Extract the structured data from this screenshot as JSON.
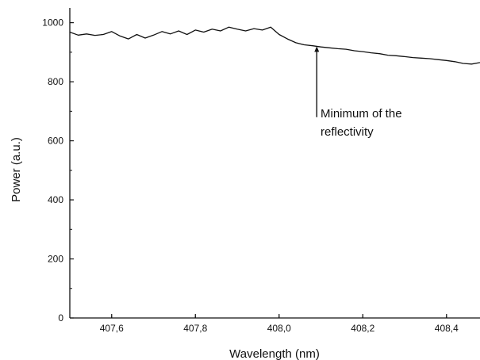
{
  "chart_data": {
    "type": "line",
    "title": "",
    "xlabel": "Wavelength (nm)",
    "ylabel": "Power (a.u.)",
    "xlim": [
      407.5,
      408.48
    ],
    "ylim": [
      0,
      1050
    ],
    "xticks": [
      407.6,
      407.8,
      408.0,
      408.2,
      408.4
    ],
    "xtick_labels": [
      "407,6",
      "407,8",
      "408,0",
      "408,2",
      "408,4"
    ],
    "yticks": [
      0,
      200,
      400,
      600,
      800,
      1000
    ],
    "ytick_labels": [
      "0",
      "200",
      "400",
      "600",
      "800",
      "1000"
    ],
    "grid": false,
    "legend": "none",
    "line_color": "#111111",
    "series": [
      {
        "x": [
          407.5,
          407.52,
          407.54,
          407.56,
          407.58,
          407.6,
          407.62,
          407.64,
          407.66,
          407.68,
          407.7,
          407.72,
          407.74,
          407.76,
          407.78,
          407.8,
          407.82,
          407.84,
          407.86,
          407.88,
          407.9,
          407.92,
          407.94,
          407.96,
          407.98,
          408.0,
          408.02,
          408.04,
          408.06,
          408.08,
          408.1,
          408.12,
          408.14,
          408.16,
          408.18,
          408.2,
          408.22,
          408.24,
          408.26,
          408.28,
          408.3,
          408.32,
          408.34,
          408.36,
          408.38,
          408.4,
          408.42,
          408.44,
          408.46,
          408.48
        ],
        "y": [
          968,
          958,
          962,
          957,
          960,
          970,
          955,
          945,
          960,
          948,
          958,
          970,
          962,
          972,
          960,
          975,
          968,
          978,
          972,
          985,
          978,
          972,
          980,
          975,
          985,
          960,
          945,
          932,
          925,
          922,
          918,
          915,
          912,
          910,
          905,
          902,
          898,
          895,
          890,
          888,
          885,
          882,
          880,
          878,
          875,
          872,
          868,
          862,
          860,
          865
        ]
      }
    ],
    "annotations": [
      {
        "text_lines": [
          "Minimum of the",
          "reflectivity"
        ],
        "arrow_x": 408.09,
        "arrow_y_from": 680,
        "arrow_y_to": 920
      }
    ]
  }
}
